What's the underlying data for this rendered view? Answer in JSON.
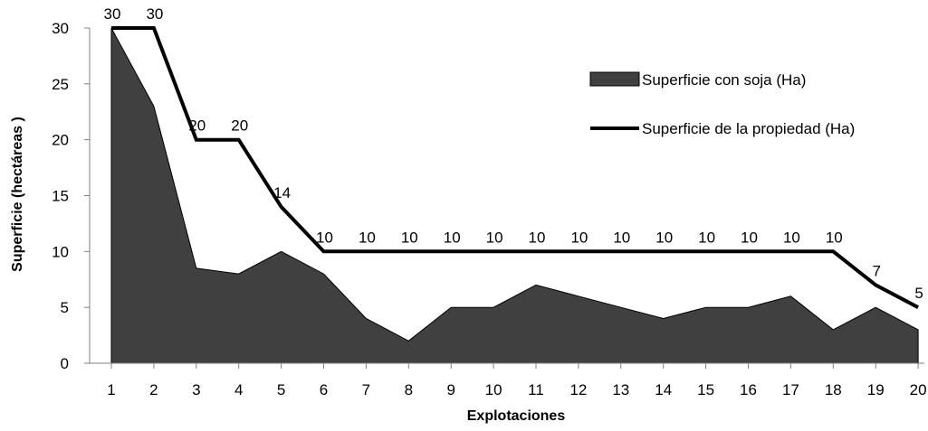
{
  "chart_data": {
    "type": "area",
    "xlabel": "Explotaciones",
    "ylabel": "Superficie (hectáreas )",
    "categories": [
      "1",
      "2",
      "3",
      "4",
      "5",
      "6",
      "7",
      "8",
      "9",
      "10",
      "11",
      "12",
      "13",
      "14",
      "15",
      "16",
      "17",
      "18",
      "19",
      "20"
    ],
    "ylim": [
      0,
      30
    ],
    "yticks": [
      0,
      5,
      10,
      15,
      20,
      25,
      30
    ],
    "grid": false,
    "legend_position": "right",
    "series": [
      {
        "name": "Superficie con soja (Ha)",
        "kind": "area",
        "color": "#404040",
        "values": [
          30,
          23,
          8.5,
          8,
          10,
          8,
          4,
          2,
          5,
          5,
          7,
          6,
          5,
          4,
          5,
          5,
          6,
          3,
          5,
          3
        ]
      },
      {
        "name": "Superficie de la propiedad (Ha)",
        "kind": "line",
        "color": "#000000",
        "values": [
          30,
          30,
          20,
          20,
          14,
          10,
          10,
          10,
          10,
          10,
          10,
          10,
          10,
          10,
          10,
          10,
          10,
          10,
          7,
          5
        ],
        "data_labels": [
          "30",
          "30",
          "20",
          "20",
          "14",
          "10",
          "10",
          "10",
          "10",
          "10",
          "10",
          "10",
          "10",
          "10",
          "10",
          "10",
          "10",
          "10",
          "7",
          "5"
        ]
      }
    ]
  }
}
